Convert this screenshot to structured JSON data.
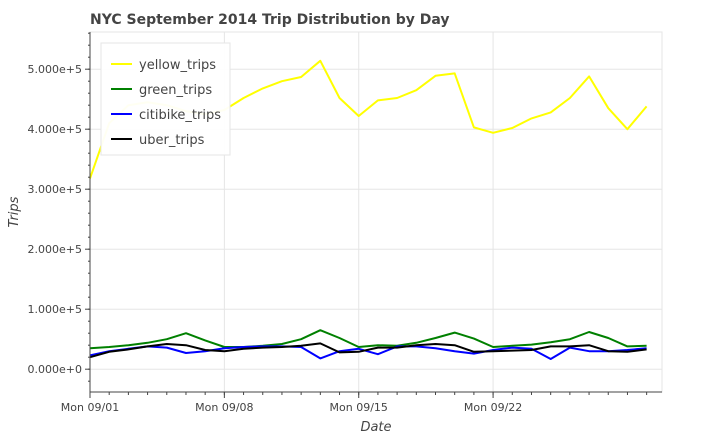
{
  "chart_data": {
    "type": "line",
    "title": "NYC September 2014 Trip Distribution by Day",
    "xlabel": "Date",
    "ylabel": "Trips",
    "x": [
      1,
      2,
      3,
      4,
      5,
      6,
      7,
      8,
      9,
      10,
      11,
      12,
      13,
      14,
      15,
      16,
      17,
      18,
      19,
      20,
      21,
      22,
      23,
      24,
      25,
      26,
      27,
      28,
      29,
      30
    ],
    "x_ticks": [
      {
        "day": 1,
        "label": "Mon 09/01"
      },
      {
        "day": 8,
        "label": "Mon 09/08"
      },
      {
        "day": 15,
        "label": "Mon 09/15"
      },
      {
        "day": 22,
        "label": "Mon 09/22"
      }
    ],
    "y_ticks": [
      {
        "value": 0,
        "label": "0.000e+0"
      },
      {
        "value": 100000,
        "label": "1.000e+5"
      },
      {
        "value": 200000,
        "label": "2.000e+5"
      },
      {
        "value": 300000,
        "label": "3.000e+5"
      },
      {
        "value": 400000,
        "label": "4.000e+5"
      },
      {
        "value": 500000,
        "label": "5.000e+5"
      }
    ],
    "xlim": [
      1,
      30.8
    ],
    "ylim": [
      -38000,
      562000
    ],
    "grid": true,
    "legend_position": "top-left",
    "series": [
      {
        "name": "yellow_trips",
        "color": "#ffff00",
        "values": [
          318000,
          410000,
          440000,
          445000,
          440000,
          430000,
          425000,
          432000,
          452000,
          468000,
          480000,
          487000,
          514000,
          452000,
          422000,
          448000,
          452000,
          465000,
          489000,
          493000,
          403000,
          394000,
          402000,
          418000,
          428000,
          452000,
          488000,
          435000,
          400000,
          438000
        ]
      },
      {
        "name": "green_trips",
        "color": "#008000",
        "values": [
          35000,
          37000,
          40000,
          44000,
          50000,
          60000,
          48000,
          37000,
          37000,
          39000,
          42000,
          50000,
          65000,
          52000,
          37000,
          40000,
          39000,
          44000,
          52000,
          61000,
          51000,
          37000,
          39000,
          41000,
          45000,
          50000,
          62000,
          52000,
          38000,
          39000
        ]
      },
      {
        "name": "citibike_trips",
        "color": "#0000ff",
        "values": [
          23000,
          30000,
          34000,
          38000,
          36000,
          27000,
          30000,
          35000,
          37000,
          38000,
          38000,
          37000,
          18000,
          30000,
          34000,
          25000,
          38000,
          38000,
          35000,
          30000,
          26000,
          32000,
          36000,
          34000,
          17000,
          36000,
          30000,
          30000,
          32000,
          35000
        ]
      },
      {
        "name": "uber_trips",
        "color": "#000000",
        "values": [
          20000,
          29000,
          33000,
          38000,
          42000,
          40000,
          32000,
          30000,
          34000,
          36000,
          37000,
          39000,
          43000,
          28000,
          29000,
          36000,
          36000,
          40000,
          42000,
          40000,
          29000,
          30000,
          31000,
          32000,
          38000,
          38000,
          40000,
          30000,
          29000,
          33000
        ]
      }
    ]
  }
}
